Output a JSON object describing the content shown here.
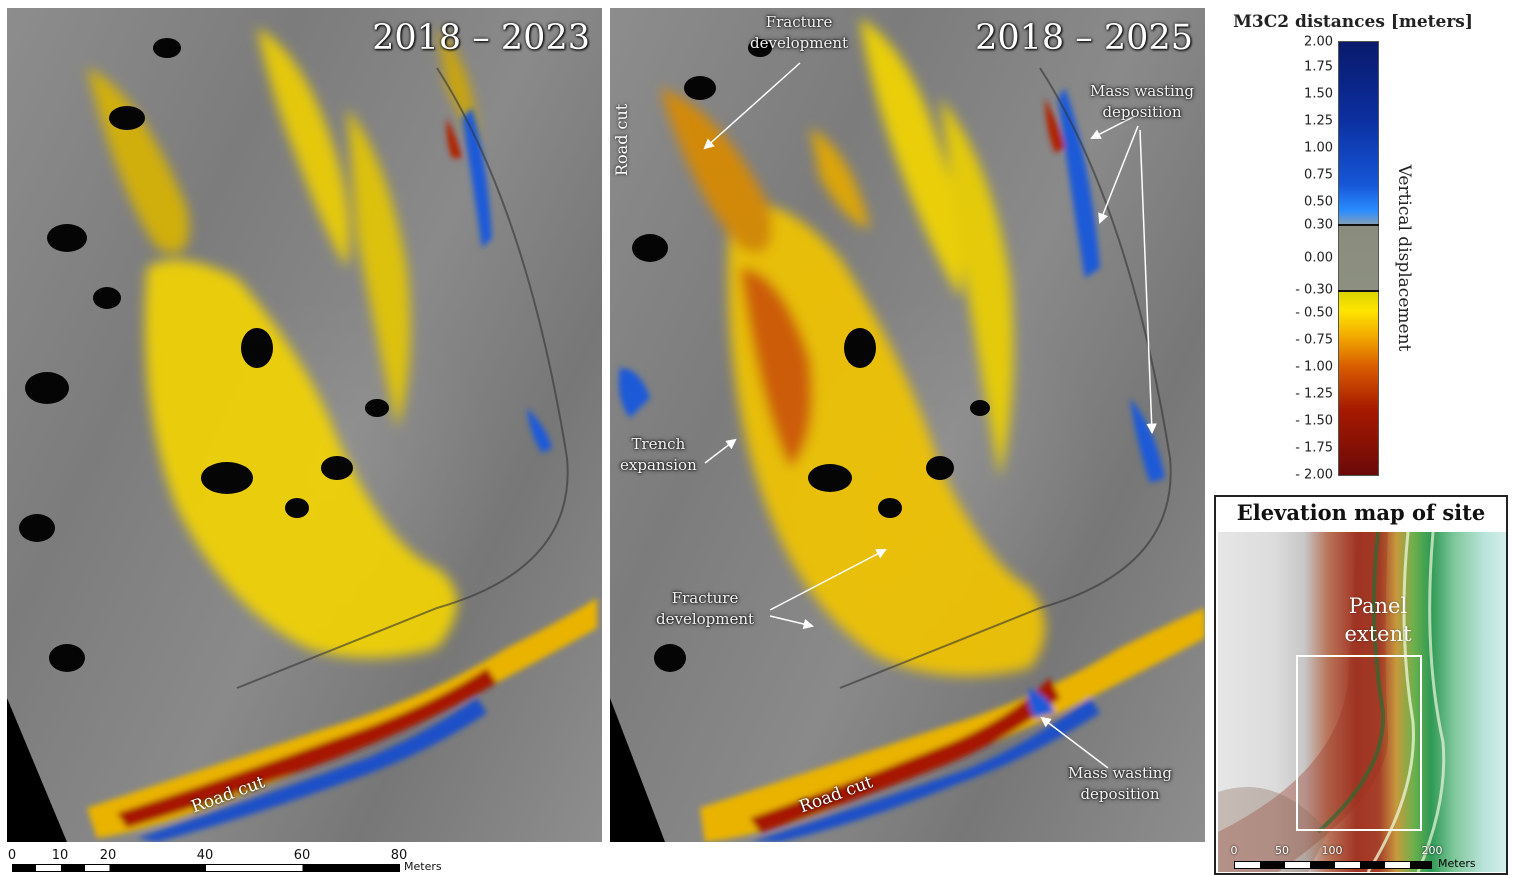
{
  "panels": [
    {
      "title": "2018 – 2023",
      "road_cut_label": "Road cut"
    },
    {
      "title": "2018 – 2025",
      "road_cut_label": "Road cut",
      "road_cut_vertical_label": "Road cut",
      "annotations": {
        "fracture_top": "Fracture\ndevelopment",
        "mass_wasting_top": "Mass wasting\ndeposition",
        "trench": "Trench\nexpansion",
        "fracture_bottom": "Fracture\ndevelopment",
        "mass_wasting_bottom": "Mass wasting\ndeposition"
      }
    }
  ],
  "colorbar": {
    "title": "M3C2 distances [meters]",
    "side_label": "Vertical displacement",
    "ticks": [
      "2.00",
      "1.75",
      "1.50",
      "1.25",
      "1.00",
      "0.75",
      "0.50",
      "0.30",
      "0.00",
      "- 0.30",
      "- 0.50",
      "- 0.75",
      "- 1.00",
      "- 1.25",
      "- 1.50",
      "- 1.75",
      "- 2.00"
    ],
    "colors": {
      "max_uplift": "#0a1a6b",
      "uplift": "#2b8cff",
      "neutral": "#8d9080",
      "small_subsidence": "#ffe600",
      "subsidence": "#d95c00",
      "max_subsidence": "#6b0a0a"
    }
  },
  "scale_bar": {
    "ticks": [
      "0",
      "10",
      "20",
      "40",
      "60",
      "80"
    ],
    "unit": "Meters"
  },
  "elevation_map": {
    "title": "Elevation map of site",
    "extent_label": "Panel\nextent",
    "scale_ticks": [
      "0",
      "50",
      "100",
      "200"
    ],
    "scale_unit": "Meters"
  }
}
